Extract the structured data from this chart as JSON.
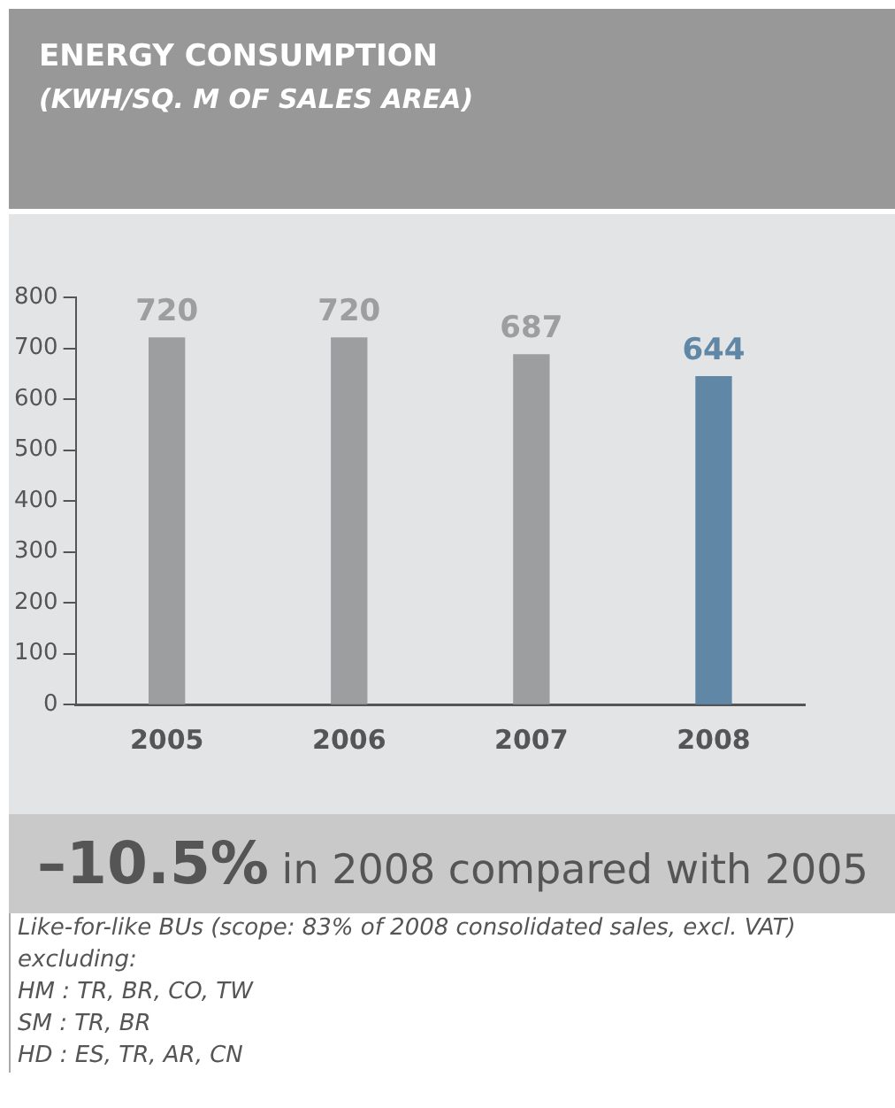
{
  "chart_data": {
    "type": "bar",
    "title": "ENERGY CONSUMPTION",
    "subtitle": "(KWH/SQ. M OF SALES AREA)",
    "categories": [
      "2005",
      "2006",
      "2007",
      "2008"
    ],
    "values": [
      720,
      720,
      687,
      644
    ],
    "colors": [
      "#9d9ea0",
      "#9d9ea0",
      "#9d9ea0",
      "#6088a6"
    ],
    "ylim": [
      0,
      800
    ],
    "yticks": [
      0,
      100,
      200,
      300,
      400,
      500,
      600,
      700,
      800
    ],
    "grid": false,
    "legend": false,
    "data_labels": true,
    "annotations": [
      "–10.5% in 2008 compared with 2005",
      "Like-for-like BUs (scope: 83% of 2008 consolidated sales, excl. VAT) excluding:",
      "HM : TR, BR, CO, TW",
      "SM : TR, BR",
      "HD : ES, TR, AR, CN"
    ]
  }
}
